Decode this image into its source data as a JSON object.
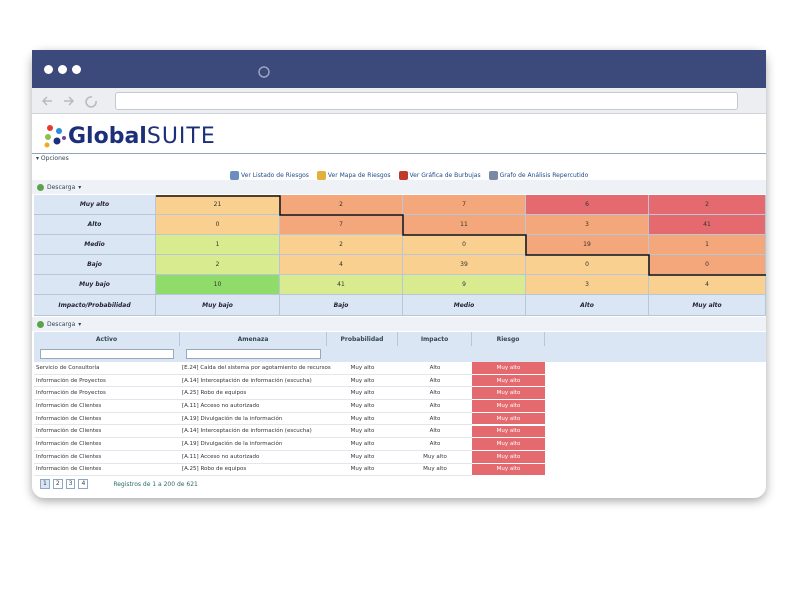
{
  "header": {
    "logo_prefix": "Global",
    "logo_suffix": "SUITE"
  },
  "options_label": "Opciones",
  "links": [
    "Ver Listado de Riesgos",
    "Ver Mapa de Riesgos",
    "Ver Gráfica de Burbujas",
    "Grafo de Análisis Repercutido"
  ],
  "matrix": {
    "download": "Descarga",
    "rows": [
      {
        "label": "Muy alto",
        "values": [
          21,
          2,
          7,
          6,
          2
        ],
        "colors": [
          "#f9d08f",
          "#f4a77a",
          "#f4a77a",
          "#e46a6f",
          "#e46a6f"
        ]
      },
      {
        "label": "Alto",
        "values": [
          0,
          7,
          11,
          3,
          41
        ],
        "colors": [
          "#f9d08f",
          "#f4a77a",
          "#f4a77a",
          "#f4a77a",
          "#e46a6f"
        ]
      },
      {
        "label": "Medio",
        "values": [
          1,
          2,
          0,
          19,
          1
        ],
        "colors": [
          "#d8ec8f",
          "#f9d08f",
          "#f9d08f",
          "#f4a77a",
          "#f4a77a"
        ]
      },
      {
        "label": "Bajo",
        "values": [
          2,
          4,
          39,
          0,
          0
        ],
        "colors": [
          "#d8ec8f",
          "#f9d08f",
          "#f9d08f",
          "#f9d08f",
          "#f4a77a"
        ]
      },
      {
        "label": "Muy bajo",
        "values": [
          10,
          41,
          9,
          3,
          4
        ],
        "colors": [
          "#8fdc6a",
          "#d8ec8f",
          "#d8ec8f",
          "#f9d08f",
          "#f9d08f"
        ]
      }
    ],
    "corner": "Impacto/Probabilidad",
    "columns": [
      "Muy bajo",
      "Bajo",
      "Medio",
      "Alto",
      "Muy alto"
    ]
  },
  "table": {
    "download": "Descarga",
    "columns": [
      "Activo",
      "Amenaza",
      "Probabilidad",
      "Impacto",
      "Riesgo"
    ],
    "rows": [
      [
        "Servicio de Consultoría",
        "[E.24] Caída del sistema por agotamiento de recursos",
        "Muy alto",
        "Alto",
        "Muy alto"
      ],
      [
        "Información de Proyectos",
        "[A.14] Interceptación de información (escucha)",
        "Muy alto",
        "Alto",
        "Muy alto"
      ],
      [
        "Información de Proyectos",
        "[A.25] Robo de equipos",
        "Muy alto",
        "Alto",
        "Muy alto"
      ],
      [
        "Información de Clientes",
        "[A.11] Acceso no autorizado",
        "Muy alto",
        "Alto",
        "Muy alto"
      ],
      [
        "Información de Clientes",
        "[A.19] Divulgación de la información",
        "Muy alto",
        "Alto",
        "Muy alto"
      ],
      [
        "Información de Clientes",
        "[A.14] Interceptación de información (escucha)",
        "Muy alto",
        "Alto",
        "Muy alto"
      ],
      [
        "Información de Clientes",
        "[A.19] Divulgación de la información",
        "Muy alto",
        "Alto",
        "Muy alto"
      ],
      [
        "Información de Clientes",
        "[A.11] Acceso no autorizado",
        "Muy alto",
        "Muy alto",
        "Muy alto"
      ],
      [
        "Información de Clientes",
        "[A.25] Robo de equipos",
        "Muy alto",
        "Muy alto",
        "Muy alto"
      ]
    ],
    "pages": [
      "1",
      "2",
      "3",
      "4"
    ],
    "records": "Registros de 1 a 200 de 621"
  }
}
